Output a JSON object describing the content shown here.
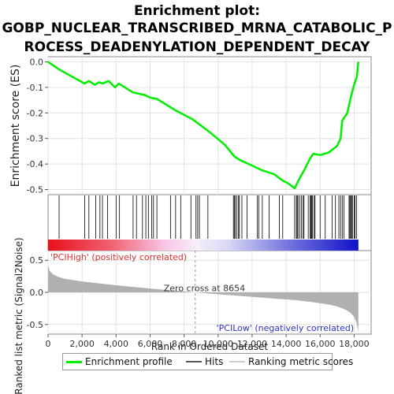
{
  "title_line1": "Enrichment plot:",
  "title_line2": "GOBP_NUCLEAR_TRANSCRIBED_MRNA_CATABOLIC_P",
  "title_line3": "ROCESS_DEADENYLATION_DEPENDENT_DECAY",
  "legend": {
    "enrichment_label": "Enrichment profile",
    "hits_label": "Hits",
    "ranking_label": "Ranking metric scores"
  },
  "colors": {
    "enrichment_line": "#00ee00",
    "hits": "#000000",
    "metric_fill": "#b0b0b0",
    "pos_label": "#e03030",
    "neg_label": "#3030c0"
  },
  "chart_data": {
    "type": "line",
    "es_panel": {
      "ylabel": "Enrichment score (ES)",
      "ylim": [
        -0.52,
        0.02
      ],
      "yticks": [
        -0.5,
        -0.4,
        -0.3,
        -0.2,
        -0.1,
        0.0
      ],
      "ytick_labels": [
        "-0.5",
        "-0.4",
        "-0.3",
        "-0.2",
        "-0.1",
        "0.0"
      ],
      "x": [
        0,
        650,
        2150,
        2400,
        2750,
        3000,
        3200,
        3550,
        3950,
        4150,
        5000,
        5350,
        5700,
        6000,
        6400,
        7500,
        8500,
        9500,
        10400,
        10950,
        11300,
        11800,
        12600,
        13300,
        13800,
        14100,
        14500,
        14800,
        15100,
        15400,
        15600,
        16000,
        16500,
        17000,
        17200,
        17300,
        17600,
        17800,
        18000,
        18150,
        18250
      ],
      "y": [
        0.0,
        -0.03,
        -0.085,
        -0.075,
        -0.09,
        -0.08,
        -0.085,
        -0.075,
        -0.1,
        -0.085,
        -0.12,
        -0.125,
        -0.13,
        -0.14,
        -0.145,
        -0.19,
        -0.225,
        -0.275,
        -0.325,
        -0.37,
        -0.385,
        -0.4,
        -0.425,
        -0.44,
        -0.465,
        -0.475,
        -0.495,
        -0.455,
        -0.42,
        -0.38,
        -0.36,
        -0.365,
        -0.355,
        -0.33,
        -0.3,
        -0.23,
        -0.2,
        -0.14,
        -0.09,
        -0.06,
        0.0
      ]
    },
    "hits": [
      650,
      2150,
      2400,
      2800,
      3050,
      3200,
      3500,
      4000,
      4200,
      5000,
      5200,
      5550,
      5750,
      5900,
      6100,
      6200,
      6400,
      7200,
      7500,
      7800,
      8400,
      8700,
      8800,
      8900,
      9400,
      10900,
      10950,
      11000,
      11100,
      11200,
      11250,
      11400,
      11700,
      12300,
      12400,
      12600,
      13000,
      13600,
      13800,
      14500,
      14600,
      14650,
      14700,
      14800,
      14900,
      15000,
      15050,
      15300,
      15400,
      15450,
      15500,
      15550,
      15650,
      15700,
      16000,
      16300,
      16700,
      16900,
      17100,
      17200,
      17300,
      17400,
      17700,
      17750,
      17800,
      17850,
      17900,
      18000,
      18050,
      18150
    ],
    "metric_panel": {
      "ylabel": "Ranked list metric (Signal2Noise)",
      "ylim": [
        -0.65,
        0.65
      ],
      "yticks": [
        -0.5,
        0.0,
        0.5
      ],
      "ytick_labels": [
        "-0.5",
        "0.0",
        "0.5"
      ],
      "x": [
        0,
        100,
        300,
        600,
        1000,
        2000,
        3000,
        4000,
        5000,
        6000,
        7000,
        8000,
        8654,
        9500,
        10500,
        11500,
        12500,
        13500,
        14500,
        15500,
        16000,
        16500,
        17000,
        17500,
        17800,
        18000,
        18150,
        18250
      ],
      "y": [
        0.42,
        0.33,
        0.28,
        0.24,
        0.21,
        0.17,
        0.14,
        0.11,
        0.085,
        0.06,
        0.035,
        0.015,
        0.0,
        -0.02,
        -0.04,
        -0.06,
        -0.08,
        -0.1,
        -0.12,
        -0.15,
        -0.17,
        -0.19,
        -0.22,
        -0.27,
        -0.32,
        -0.38,
        -0.48,
        -0.62
      ],
      "zero_cross_label": "Zero cross at 8654",
      "zero_cross": 8654,
      "pos_label": "'PCIHigh' (positively correlated)",
      "neg_label": "'PCILow' (negatively correlated)"
    },
    "xlabel": "Rank in Ordered Dataset",
    "xlim": [
      0,
      19000
    ],
    "xticks": [
      0,
      2000,
      4000,
      6000,
      8000,
      10000,
      12000,
      14000,
      16000,
      18000
    ],
    "xtick_labels": [
      "0",
      "2,000",
      "4,000",
      "6,000",
      "8,000",
      "10,000",
      "12,000",
      "14,000",
      "16,000",
      "18,000"
    ],
    "grid": true
  }
}
